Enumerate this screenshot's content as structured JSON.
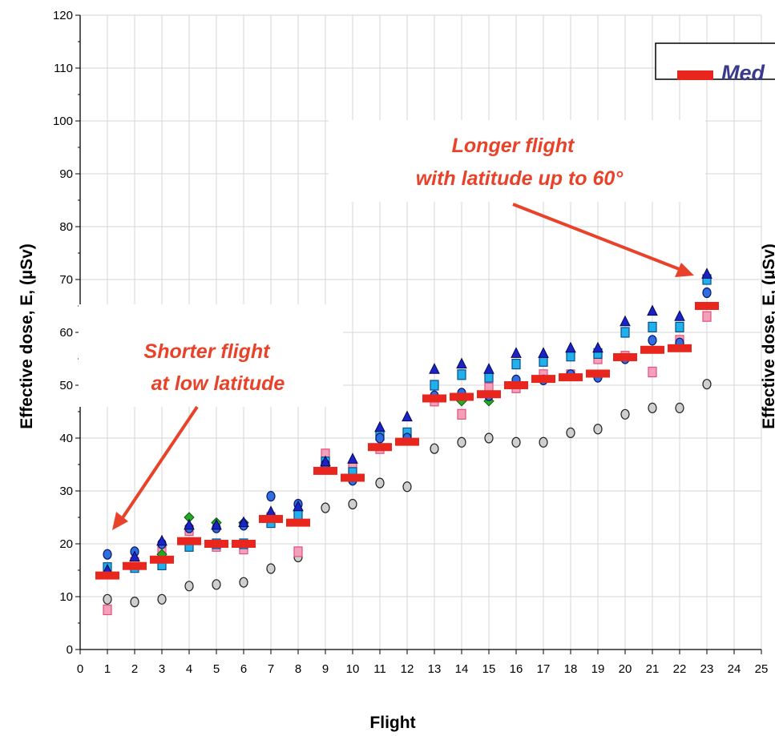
{
  "chart_data": {
    "type": "scatter",
    "title": "",
    "xlabel": "Flight",
    "ylabel": "Effective dose, E, (µSv)",
    "ylabel_right": "Effective dose, E, (µSv)",
    "xlim": [
      0,
      25
    ],
    "ylim": [
      0,
      120
    ],
    "x_ticks": [
      0,
      1,
      2,
      3,
      4,
      5,
      6,
      7,
      8,
      9,
      10,
      11,
      12,
      13,
      14,
      15,
      16,
      17,
      18,
      19,
      20,
      21,
      22,
      23,
      24,
      25
    ],
    "y_ticks": [
      0,
      10,
      20,
      30,
      40,
      50,
      60,
      70,
      80,
      90,
      100,
      110,
      120
    ],
    "grid": true,
    "legend": {
      "placement": "top-right",
      "entries": [
        {
          "label": "Med",
          "color": "#e8261e"
        }
      ]
    },
    "annotations": [
      {
        "lines": [
          "Longer flight",
          "with latitude up to 60°"
        ],
        "points_to": [
          23,
          71
        ]
      },
      {
        "lines": [
          "Shorter flight",
          "at low latitude"
        ],
        "points_to": [
          1,
          19
        ]
      }
    ],
    "colors": {
      "median": "#e8261e",
      "triangle": "#1a22c8",
      "circle": "#2e6ee0",
      "square_cyan": "#20b0ec",
      "square_pink": "#f4a0b8",
      "diamond": "#22aa22",
      "circle_grey": "#cfcfcf",
      "annotation": "#e8432a"
    },
    "series": [
      {
        "name": "Med",
        "marker": "bar",
        "x": [
          1,
          2,
          3,
          4,
          5,
          6,
          7,
          8,
          9,
          10,
          11,
          12,
          13,
          14,
          15,
          16,
          17,
          18,
          19,
          20,
          21,
          22,
          23
        ],
        "y": [
          14,
          15.8,
          17,
          20.5,
          20,
          20,
          24.7,
          24,
          33.8,
          32.5,
          38.3,
          39.3,
          47.5,
          47.8,
          48.3,
          50,
          51.2,
          51.5,
          52.2,
          55.3,
          56.7,
          57,
          65
        ]
      },
      {
        "marker": "triangle",
        "x": [
          1,
          2,
          3,
          4,
          5,
          6,
          7,
          8,
          9,
          10,
          11,
          12,
          13,
          14,
          15,
          16,
          17,
          18,
          19,
          20,
          21,
          22,
          23
        ],
        "y": [
          15,
          17.5,
          20.5,
          23.5,
          23.5,
          24,
          26,
          27,
          35.5,
          36,
          42,
          44,
          53,
          54,
          53,
          56,
          56,
          57,
          57,
          62,
          64,
          63,
          71
        ]
      },
      {
        "marker": "circle",
        "x": [
          1,
          2,
          3,
          4,
          5,
          6,
          7,
          8,
          9,
          10,
          11,
          12,
          13,
          14,
          15,
          16,
          17,
          18,
          19,
          20,
          21,
          22,
          23
        ],
        "y": [
          18,
          18.5,
          20,
          23,
          23,
          23.5,
          29,
          27.5,
          35,
          32,
          40,
          40,
          48,
          48.5,
          48,
          51,
          51,
          52,
          51.5,
          55,
          58.5,
          58,
          67.5
        ]
      },
      {
        "marker": "square_cyan",
        "x": [
          1,
          2,
          3,
          4,
          5,
          6,
          7,
          8,
          9,
          10,
          11,
          12,
          13,
          14,
          15,
          16,
          17,
          18,
          19,
          20,
          21,
          22,
          23
        ],
        "y": [
          15.5,
          15.5,
          16,
          19.5,
          20,
          20,
          24,
          25.5,
          35.5,
          33.5,
          40.5,
          41,
          50,
          52,
          51.5,
          54,
          54.5,
          55.5,
          56,
          60,
          61,
          61,
          70
        ]
      },
      {
        "marker": "square_pink",
        "x": [
          1,
          2,
          3,
          4,
          5,
          6,
          7,
          8,
          9,
          10,
          11,
          12,
          13,
          14,
          15,
          16,
          17,
          18,
          19,
          20,
          21,
          22,
          23
        ],
        "y": [
          7.5,
          16.5,
          19,
          22.5,
          19.5,
          19,
          25,
          18.5,
          37,
          34.5,
          38,
          40,
          47,
          44.5,
          49.5,
          49.5,
          52,
          52,
          55,
          55.5,
          52.5,
          58.5,
          63
        ]
      },
      {
        "marker": "diamond",
        "x": [
          3,
          4,
          5,
          6,
          13,
          14,
          15,
          20
        ],
        "y": [
          18,
          25,
          24,
          24,
          48,
          47,
          47,
          55
        ]
      },
      {
        "marker": "circle_grey",
        "x": [
          1,
          2,
          3,
          4,
          5,
          6,
          7,
          8,
          9,
          10,
          11,
          12,
          13,
          14,
          15,
          16,
          17,
          18,
          19,
          20,
          21,
          22,
          23
        ],
        "y": [
          9.5,
          9,
          9.5,
          12,
          12.3,
          12.7,
          15.3,
          17.5,
          26.8,
          27.5,
          31.5,
          30.8,
          38,
          39.2,
          40,
          39.2,
          39.2,
          41,
          41.7,
          44.5,
          45.7,
          45.7,
          50.2
        ]
      }
    ]
  }
}
